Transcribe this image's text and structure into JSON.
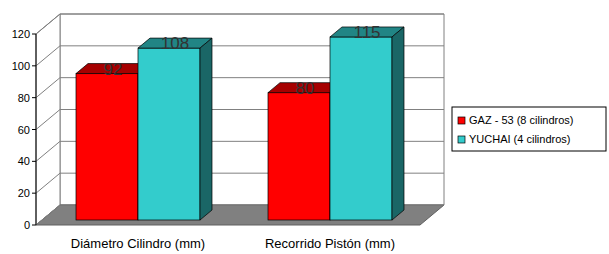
{
  "chart_data": {
    "type": "bar",
    "categories": [
      "Diámetro Cilindro (mm)",
      "Recorrido Pistón (mm)"
    ],
    "series": [
      {
        "name": "GAZ - 53 (8 cilindros)",
        "color": "#ff0000",
        "values": [
          92,
          80
        ]
      },
      {
        "name": "YUCHAI (4 cilindros)",
        "color": "#33cccc",
        "values": [
          108,
          115
        ]
      }
    ],
    "ylim": [
      0,
      120
    ],
    "yticks": [
      0,
      20,
      40,
      60,
      80,
      100,
      120
    ],
    "grid": true,
    "data_labels": true,
    "legend": "right"
  }
}
